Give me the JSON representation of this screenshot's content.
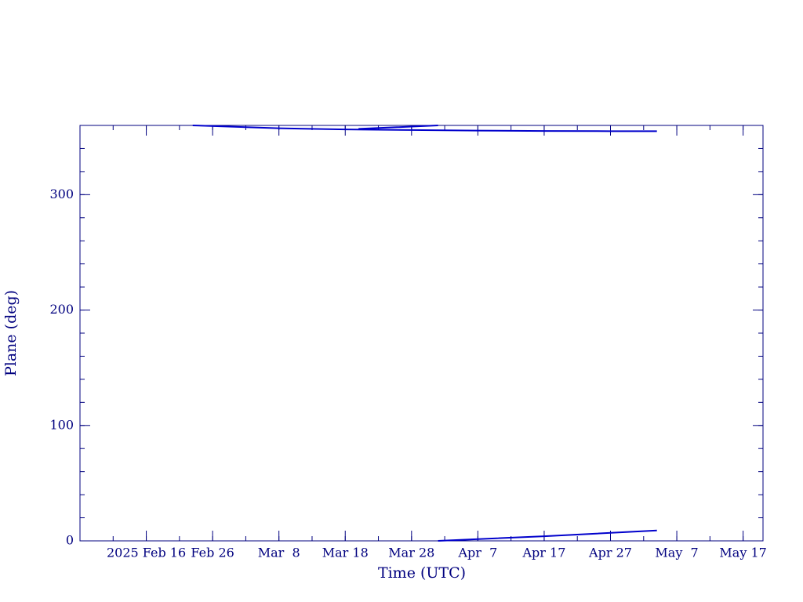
{
  "chart_data": {
    "type": "line",
    "x_label": "Time (UTC)",
    "y_label": "Plane (deg)",
    "xlim": [
      "2025-02-06",
      "2025-05-20"
    ],
    "xticks": [
      {
        "value": "2025-02-16",
        "label": "2025 Feb 16"
      },
      {
        "value": "2025-02-26",
        "label": "Feb 26"
      },
      {
        "value": "2025-03-08",
        "label": "Mar  8"
      },
      {
        "value": "2025-03-18",
        "label": "Mar 18"
      },
      {
        "value": "2025-03-28",
        "label": "Mar 28"
      },
      {
        "value": "2025-04-07",
        "label": "Apr  7"
      },
      {
        "value": "2025-04-17",
        "label": "Apr 17"
      },
      {
        "value": "2025-04-27",
        "label": "Apr 27"
      },
      {
        "value": "2025-05-07",
        "label": "May  7"
      },
      {
        "value": "2025-05-17",
        "label": "May 17"
      }
    ],
    "ylim": [
      0,
      360
    ],
    "yticks": [
      0,
      100,
      200,
      300
    ],
    "series": [
      {
        "color": "#0000cc",
        "x": [
          "2025-02-23",
          "2025-03-08",
          "2025-03-18",
          "2025-03-28",
          "2025-04-07",
          "2025-04-17",
          "2025-04-27",
          "2025-05-04"
        ],
        "values": [
          360,
          357.5,
          356.5,
          356,
          355.5,
          355.2,
          355,
          355
        ]
      },
      {
        "color": "#0000cc",
        "x": [
          "2025-03-20",
          "2025-04-01",
          null,
          "2025-04-01",
          "2025-04-17",
          "2025-05-04"
        ],
        "values": [
          357,
          360,
          null,
          0,
          4,
          9
        ]
      }
    ]
  }
}
